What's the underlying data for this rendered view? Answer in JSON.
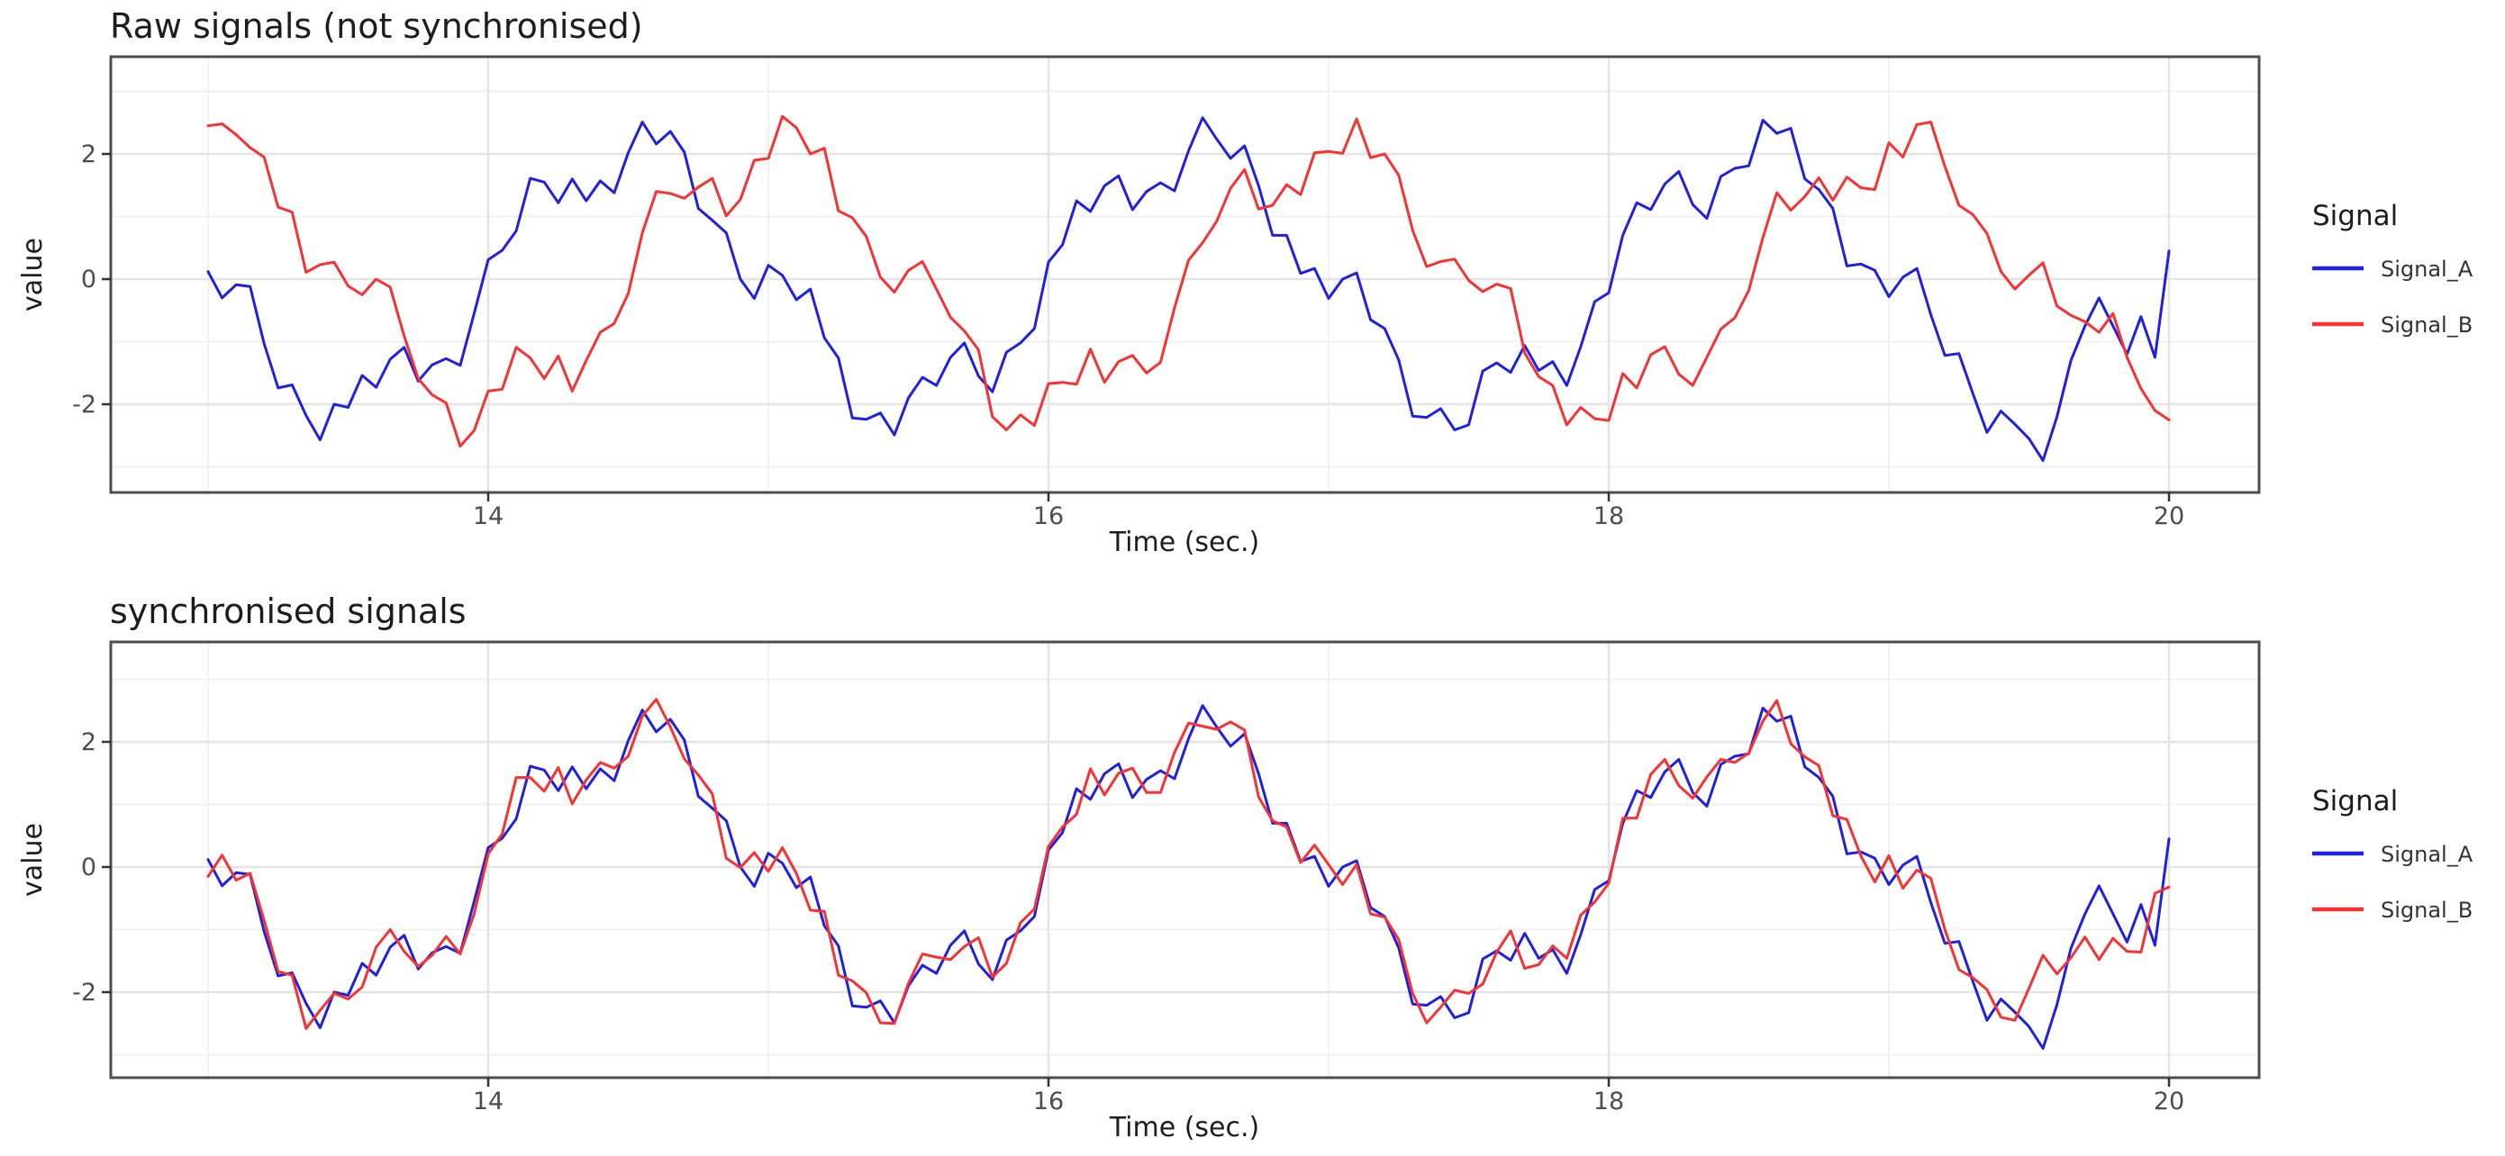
{
  "page": {
    "background": "#ffffff"
  },
  "theme": {
    "panel_background": "#ffffff",
    "panel_border": "#4d4d4d",
    "grid_major": "#e4e4e4",
    "grid_minor": "#f1f1f1",
    "tick_mark_color": "#333333",
    "tick_label_color": "#4d4d4d",
    "title_color": "#1d1d1d",
    "signal_a_color": "#2020e0",
    "signal_b_color": "#f73232"
  },
  "chart_data": [
    {
      "type": "line",
      "title": "Raw signals (not synchronised)",
      "xlabel": "Time (sec.)",
      "ylabel": "value",
      "legend_title": "Signal",
      "legend_position": "right",
      "grid": true,
      "x_domain": [
        12.65,
        20.33
      ],
      "y_domain": [
        -3.45,
        3.55
      ],
      "x_ticks": [
        14,
        16,
        18,
        20
      ],
      "x_tick_labels": [
        "14",
        "16",
        "18",
        "20"
      ],
      "x_minor_ticks": [
        13,
        15,
        17,
        19
      ],
      "y_ticks": [
        -2,
        0,
        2
      ],
      "y_tick_labels": [
        "-2",
        "0",
        "2"
      ],
      "y_minor_ticks": [
        -3,
        -1,
        1,
        3
      ],
      "x_start": 13.0,
      "x_step": 0.05,
      "series": [
        {
          "name": "Signal_A",
          "color": "#2020e0",
          "values": [
            0.12,
            -0.3,
            -0.09,
            -0.12,
            -1.03,
            -1.74,
            -1.69,
            -2.18,
            -2.57,
            -2.0,
            -2.05,
            -1.54,
            -1.73,
            -1.28,
            -1.09,
            -1.63,
            -1.37,
            -1.27,
            -1.38,
            -0.55,
            0.31,
            0.46,
            0.77,
            1.61,
            1.55,
            1.22,
            1.6,
            1.25,
            1.57,
            1.38,
            2.02,
            2.51,
            2.16,
            2.36,
            2.03,
            1.13,
            0.94,
            0.74,
            0.0,
            -0.31,
            0.22,
            0.06,
            -0.33,
            -0.16,
            -0.94,
            -1.26,
            -2.22,
            -2.24,
            -2.14,
            -2.49,
            -1.9,
            -1.57,
            -1.7,
            -1.25,
            -1.02,
            -1.55,
            -1.8,
            -1.17,
            -1.02,
            -0.79,
            0.27,
            0.55,
            1.25,
            1.08,
            1.49,
            1.65,
            1.11,
            1.4,
            1.54,
            1.41,
            2.05,
            2.58,
            2.24,
            1.93,
            2.13,
            1.49,
            0.7,
            0.7,
            0.09,
            0.17,
            -0.31,
            0.0,
            0.1,
            -0.65,
            -0.79,
            -1.29,
            -2.19,
            -2.21,
            -2.07,
            -2.41,
            -2.33,
            -1.47,
            -1.34,
            -1.49,
            -1.06,
            -1.46,
            -1.32,
            -1.7,
            -1.08,
            -0.36,
            -0.22,
            0.7,
            1.22,
            1.11,
            1.52,
            1.72,
            1.19,
            0.97,
            1.64,
            1.77,
            1.81,
            2.54,
            2.33,
            2.41,
            1.6,
            1.43,
            1.13,
            0.21,
            0.24,
            0.14,
            -0.28,
            0.03,
            0.17,
            -0.57,
            -1.22,
            -1.19,
            -1.83,
            -2.45,
            -2.11,
            -2.32,
            -2.55,
            -2.9,
            -2.2,
            -1.3,
            -0.75,
            -0.3,
            -0.75,
            -1.2,
            -0.6,
            -1.25,
            0.45
          ]
        },
        {
          "name": "Signal_B",
          "color": "#f73232",
          "values": [
            2.45,
            2.48,
            2.31,
            2.1,
            1.95,
            1.15,
            1.07,
            0.11,
            0.23,
            0.27,
            -0.11,
            -0.25,
            0.0,
            -0.13,
            -0.91,
            -1.59,
            -1.85,
            -1.98,
            -2.67,
            -2.42,
            -1.79,
            -1.76,
            -1.09,
            -1.26,
            -1.59,
            -1.23,
            -1.79,
            -1.3,
            -0.85,
            -0.71,
            -0.23,
            0.74,
            1.4,
            1.37,
            1.29,
            1.47,
            1.61,
            1.01,
            1.27,
            1.9,
            1.93,
            2.6,
            2.42,
            2.0,
            2.09,
            1.09,
            0.98,
            0.68,
            0.03,
            -0.21,
            0.14,
            0.28,
            -0.16,
            -0.61,
            -0.83,
            -1.13,
            -2.2,
            -2.41,
            -2.17,
            -2.34,
            -1.67,
            -1.65,
            -1.68,
            -1.12,
            -1.65,
            -1.32,
            -1.22,
            -1.5,
            -1.33,
            -0.46,
            0.3,
            0.58,
            0.92,
            1.45,
            1.75,
            1.12,
            1.18,
            1.51,
            1.35,
            2.02,
            2.04,
            2.01,
            2.56,
            1.94,
            2.0,
            1.66,
            0.78,
            0.2,
            0.28,
            0.32,
            -0.02,
            -0.2,
            -0.08,
            -0.15,
            -1.18,
            -1.56,
            -1.7,
            -2.33,
            -2.05,
            -2.23,
            -2.26,
            -1.51,
            -1.74,
            -1.21,
            -1.08,
            -1.52,
            -1.7,
            -1.25,
            -0.8,
            -0.62,
            -0.18,
            0.66,
            1.38,
            1.1,
            1.32,
            1.62,
            1.26,
            1.63,
            1.46,
            1.43,
            2.18,
            1.95,
            2.47,
            2.51,
            1.8,
            1.18,
            1.03,
            0.73,
            0.12,
            -0.16,
            0.06,
            0.26,
            -0.43,
            -0.58,
            -0.68,
            -0.85,
            -0.55,
            -1.25,
            -1.75,
            -2.1,
            -2.25
          ]
        }
      ]
    },
    {
      "type": "line",
      "title": "synchronised signals",
      "xlabel": "Time (sec.)",
      "ylabel": "value",
      "legend_title": "Signal",
      "legend_position": "right",
      "grid": true,
      "x_domain": [
        12.65,
        20.33
      ],
      "y_domain": [
        -3.45,
        3.55
      ],
      "x_ticks": [
        14,
        16,
        18,
        20
      ],
      "x_tick_labels": [
        "14",
        "16",
        "18",
        "20"
      ],
      "x_minor_ticks": [
        13,
        15,
        17,
        19
      ],
      "y_ticks": [
        -2,
        0,
        2
      ],
      "y_tick_labels": [
        "-2",
        "0",
        "2"
      ],
      "y_minor_ticks": [
        -3,
        -1,
        1,
        3
      ],
      "x_start": 13.0,
      "x_step": 0.05,
      "series": [
        {
          "name": "Signal_A",
          "color": "#2020e0",
          "values": [
            0.12,
            -0.3,
            -0.09,
            -0.12,
            -1.03,
            -1.74,
            -1.69,
            -2.18,
            -2.57,
            -2.0,
            -2.05,
            -1.54,
            -1.73,
            -1.28,
            -1.09,
            -1.63,
            -1.37,
            -1.27,
            -1.38,
            -0.55,
            0.31,
            0.46,
            0.77,
            1.61,
            1.55,
            1.22,
            1.6,
            1.25,
            1.57,
            1.38,
            2.02,
            2.51,
            2.16,
            2.36,
            2.03,
            1.13,
            0.94,
            0.74,
            0.0,
            -0.31,
            0.22,
            0.06,
            -0.33,
            -0.16,
            -0.94,
            -1.26,
            -2.22,
            -2.24,
            -2.14,
            -2.49,
            -1.9,
            -1.57,
            -1.7,
            -1.25,
            -1.02,
            -1.55,
            -1.8,
            -1.17,
            -1.02,
            -0.79,
            0.27,
            0.55,
            1.25,
            1.08,
            1.49,
            1.65,
            1.11,
            1.4,
            1.54,
            1.41,
            2.05,
            2.58,
            2.24,
            1.93,
            2.13,
            1.49,
            0.7,
            0.7,
            0.09,
            0.17,
            -0.31,
            0.0,
            0.1,
            -0.65,
            -0.79,
            -1.29,
            -2.19,
            -2.21,
            -2.07,
            -2.41,
            -2.33,
            -1.47,
            -1.34,
            -1.49,
            -1.06,
            -1.46,
            -1.32,
            -1.7,
            -1.08,
            -0.36,
            -0.22,
            0.7,
            1.22,
            1.11,
            1.52,
            1.72,
            1.19,
            0.97,
            1.64,
            1.77,
            1.81,
            2.54,
            2.33,
            2.41,
            1.6,
            1.43,
            1.13,
            0.21,
            0.24,
            0.14,
            -0.28,
            0.03,
            0.17,
            -0.57,
            -1.22,
            -1.19,
            -1.83,
            -2.45,
            -2.11,
            -2.32,
            -2.55,
            -2.9,
            -2.2,
            -1.3,
            -0.75,
            -0.3,
            -0.75,
            -1.2,
            -0.6,
            -1.25,
            0.45
          ]
        },
        {
          "name": "Signal_B",
          "color": "#f73232",
          "values": [
            -0.15,
            0.19,
            -0.21,
            -0.1,
            -0.85,
            -1.67,
            -1.73,
            -2.58,
            -2.29,
            -2.02,
            -2.11,
            -1.92,
            -1.28,
            -1.0,
            -1.35,
            -1.59,
            -1.41,
            -1.11,
            -1.39,
            -0.75,
            0.21,
            0.53,
            1.43,
            1.43,
            1.21,
            1.59,
            1.01,
            1.39,
            1.67,
            1.58,
            1.77,
            2.41,
            2.68,
            2.24,
            1.73,
            1.47,
            1.17,
            0.14,
            -0.01,
            0.23,
            -0.07,
            0.31,
            -0.1,
            -0.69,
            -0.71,
            -1.73,
            -1.82,
            -2.01,
            -2.49,
            -2.5,
            -1.86,
            -1.39,
            -1.44,
            -1.48,
            -1.27,
            -1.13,
            -1.76,
            -1.54,
            -0.89,
            -0.67,
            0.33,
            0.64,
            0.84,
            1.57,
            1.15,
            1.5,
            1.58,
            1.19,
            1.19,
            1.83,
            2.3,
            2.25,
            2.2,
            2.32,
            2.19,
            1.12,
            0.74,
            0.64,
            0.07,
            0.35,
            0.04,
            -0.28,
            0.04,
            -0.75,
            -0.8,
            -1.16,
            -2.02,
            -2.49,
            -2.24,
            -1.97,
            -2.02,
            -1.87,
            -1.36,
            -1.02,
            -1.62,
            -1.56,
            -1.26,
            -1.46,
            -0.77,
            -0.56,
            -0.26,
            0.78,
            0.78,
            1.48,
            1.72,
            1.3,
            1.1,
            1.44,
            1.72,
            1.67,
            1.82,
            2.33,
            2.66,
            1.97,
            1.76,
            1.62,
            0.82,
            0.76,
            0.18,
            -0.24,
            0.18,
            -0.34,
            -0.05,
            -0.18,
            -1.0,
            -1.64,
            -1.77,
            -1.96,
            -2.4,
            -2.45,
            -1.94,
            -1.41,
            -1.71,
            -1.45,
            -1.12,
            -1.48,
            -1.14,
            -1.35,
            -1.36,
            -0.42,
            -0.32
          ]
        }
      ]
    }
  ]
}
